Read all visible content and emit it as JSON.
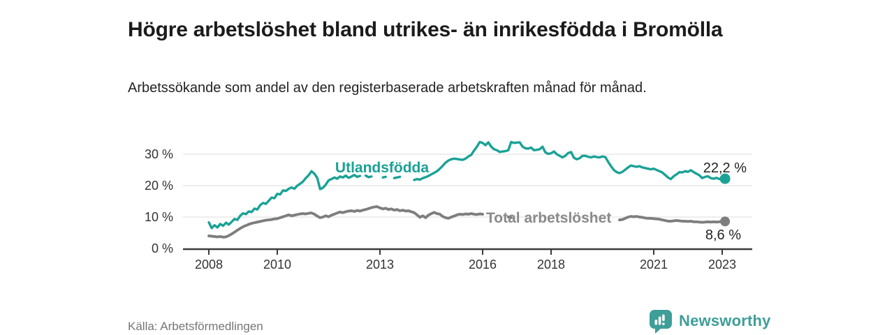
{
  "chart_data": {
    "type": "line",
    "title": "Högre arbetslöshet bland utrikes- än inrikesfödda i Bromölla",
    "subtitle": "Arbetssökande som andel av den registerbaserade arbetskraften månad för månad.",
    "source": "Källa: Arbetsförmedlingen",
    "x_unit": "month",
    "x_start_year": 2008,
    "x_ticks": [
      2008,
      2010,
      2013,
      2016,
      2018,
      2021,
      2023
    ],
    "y_ticks": [
      0,
      10,
      20,
      30
    ],
    "y_tick_suffix": " %",
    "ylim": [
      0,
      36
    ],
    "grid": "horizontal",
    "legend_position": "inline-labels",
    "series": [
      {
        "name": "Utlandsfödda",
        "color": "#1aa296",
        "end_label": "22,2 %",
        "end_value": 22.2,
        "values": [
          8.3,
          6.5,
          7.4,
          6.7,
          7.8,
          7.2,
          8.2,
          7.6,
          8.5,
          9.4,
          9.1,
          10.4,
          11.2,
          10.9,
          11.8,
          11.6,
          12.7,
          12.4,
          13.8,
          14.5,
          14.2,
          15.2,
          16.2,
          16.0,
          17.4,
          17.2,
          18.5,
          18.3,
          19.0,
          19.4,
          19.0,
          20.0,
          20.6,
          21.3,
          22.4,
          23.3,
          24.6,
          23.8,
          22.5,
          18.9,
          19.3,
          20.3,
          21.7,
          22.1,
          22.6,
          22.2,
          22.9,
          22.6,
          23.2,
          22.5,
          22.9,
          23.4,
          22.8,
          23.1,
          22.8,
          23.2,
          22.7,
          22.9,
          22.6,
          22.8,
          23.0,
          22.6,
          22.8,
          22.5,
          22.8,
          22.4,
          22.6,
          22.8,
          22.5,
          22.7,
          22.3,
          22.0,
          21.8,
          22.1,
          21.9,
          22.4,
          22.7,
          23.1,
          23.6,
          24.1,
          24.6,
          25.4,
          26.3,
          27.3,
          28.0,
          28.4,
          28.6,
          28.5,
          28.3,
          28.2,
          28.6,
          29.3,
          29.8,
          31.2,
          32.4,
          33.9,
          33.6,
          32.9,
          33.8,
          32.4,
          31.6,
          31.3,
          30.7,
          30.9,
          31.0,
          31.3,
          33.9,
          33.6,
          33.7,
          33.8,
          32.4,
          31.9,
          31.8,
          32.1,
          31.3,
          31.4,
          31.6,
          32.4,
          30.6,
          30.1,
          30.3,
          30.9,
          30.0,
          29.5,
          29.0,
          29.5,
          30.4,
          30.7,
          28.9,
          28.4,
          28.7,
          29.5,
          29.5,
          29.2,
          29.0,
          29.3,
          29.1,
          29.0,
          29.3,
          29.1,
          27.6,
          26.2,
          25.0,
          24.3,
          24.0,
          24.4,
          25.1,
          25.8,
          26.4,
          26.2,
          26.0,
          26.2,
          25.8,
          25.6,
          25.4,
          25.2,
          25.4,
          25.0,
          24.6,
          24.2,
          23.4,
          22.6,
          22.1,
          23.0,
          23.6,
          24.3,
          24.2,
          24.6,
          24.4,
          24.9,
          24.3,
          23.8,
          23.3,
          22.4,
          22.8,
          23.0,
          22.4,
          22.2,
          22.5,
          22.1,
          22.4,
          22.2
        ]
      },
      {
        "name": "Total arbetslöshet",
        "color": "#7e7e7e",
        "label_color": "#8a8a8a",
        "end_label": "8,6 %",
        "end_value": 8.6,
        "values": [
          4.0,
          3.9,
          3.8,
          3.7,
          3.8,
          3.6,
          3.7,
          4.1,
          4.6,
          5.2,
          5.8,
          6.4,
          6.9,
          7.3,
          7.7,
          8.0,
          8.2,
          8.4,
          8.6,
          8.8,
          9.0,
          9.1,
          9.2,
          9.4,
          9.5,
          9.8,
          10.1,
          10.4,
          10.7,
          10.4,
          10.6,
          10.8,
          11.0,
          11.1,
          11.0,
          11.2,
          11.3,
          10.9,
          10.3,
          9.8,
          10.0,
          10.4,
          10.1,
          10.6,
          10.9,
          11.3,
          11.6,
          11.4,
          11.7,
          11.9,
          12.0,
          11.8,
          12.1,
          11.9,
          12.2,
          12.4,
          12.7,
          13.0,
          13.2,
          13.3,
          12.9,
          12.6,
          12.8,
          12.4,
          12.6,
          12.2,
          12.4,
          12.0,
          12.2,
          11.9,
          12.0,
          11.7,
          11.4,
          10.7,
          9.9,
          10.4,
          9.8,
          10.6,
          11.1,
          11.5,
          11.1,
          10.9,
          10.2,
          9.8,
          9.6,
          10.0,
          10.3,
          10.7,
          10.9,
          10.8,
          11.0,
          10.9,
          11.1,
          10.9,
          10.8,
          11.0,
          10.9,
          11.0,
          10.8,
          10.6,
          10.5,
          10.3,
          10.2,
          10.1,
          10.0,
          10.0,
          9.9,
          9.9,
          9.8,
          9.8,
          9.7,
          9.6,
          9.6,
          9.5,
          9.5,
          9.4,
          9.4,
          9.3,
          9.3,
          9.2,
          9.2,
          9.1,
          9.1,
          9.0,
          9.0,
          8.9,
          8.9,
          8.9,
          8.8,
          8.8,
          8.8,
          8.8,
          8.8,
          8.8,
          8.9,
          8.9,
          9.0,
          9.0,
          9.0,
          9.1,
          9.1,
          9.1,
          9.1,
          9.1,
          9.1,
          9.2,
          9.6,
          10.0,
          10.2,
          10.1,
          10.2,
          10.0,
          9.9,
          9.7,
          9.6,
          9.6,
          9.5,
          9.4,
          9.3,
          9.1,
          8.9,
          8.7,
          8.7,
          8.8,
          8.9,
          8.8,
          8.7,
          8.7,
          8.6,
          8.7,
          8.5,
          8.5,
          8.4,
          8.3,
          8.4,
          8.5,
          8.4,
          8.5,
          8.4,
          8.5,
          8.7,
          8.6
        ]
      }
    ]
  },
  "brand": {
    "name": "Newsworthy",
    "color": "#3e9e98",
    "icon": "newsworthy-bar-chart-bubble-icon"
  },
  "colors": {
    "axis": "#3a3a3a",
    "grid": "#dbdbdb",
    "tick_text": "#333333",
    "end_label_text": "#232323"
  }
}
